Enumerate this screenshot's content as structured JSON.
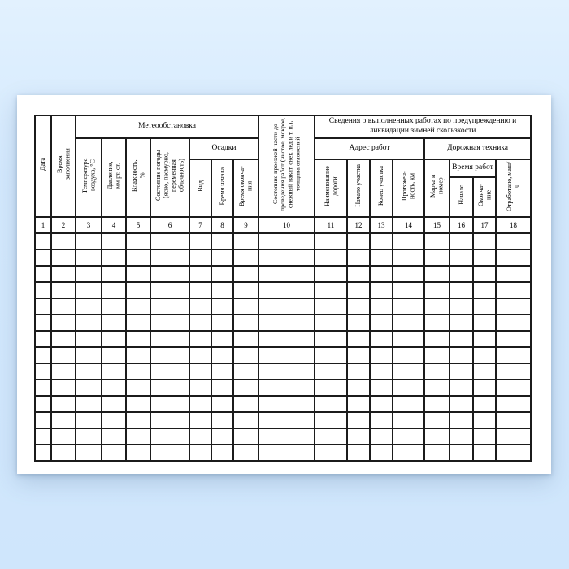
{
  "palette": {
    "background_top": "#e2f1fe",
    "background_bottom": "#cfe6fc",
    "paper": "#ffffff",
    "grid_line": "#1b1b1b",
    "text": "#000000"
  },
  "form": {
    "group_headers": {
      "meteo": "Метеообстановка",
      "precipitation": "Осадки",
      "works_info": "Сведения о выполненных работах по предупреждению и ликвидации зимней скользкости",
      "work_address": "Адрес работ",
      "road_machinery": "Дорожная техника",
      "work_time": "Время работ"
    },
    "column_headers": {
      "c1": "Дата",
      "c2": "Время заполнения",
      "c3": "Температура воздуха, °С",
      "c4": "Давление, мм рт. ст.",
      "c5": "Влажность, %",
      "c6": "Состояние погоды (ясно, пасмурно, переменная облачность)",
      "c7": "Вид",
      "c8": "Время начала",
      "c9": "Время оконча-ния",
      "c10": "Состояние проезжей части до проведения работ (чистое, мокрое, снежный накат, снег, лед и т. п.), толщина отложений",
      "c11": "Наименование дороги",
      "c12": "Начало участка",
      "c13": "Конец участка",
      "c14": "Протяжен-ность, км",
      "c15": "Марка и номер",
      "c16": "Начало",
      "c17": "Оконча-ние",
      "c18": "Отработано, маш/ч"
    },
    "column_numbers": [
      "1",
      "2",
      "3",
      "4",
      "5",
      "6",
      "7",
      "8",
      "9",
      "10",
      "11",
      "12",
      "13",
      "14",
      "15",
      "16",
      "17",
      "18"
    ],
    "data_row_count": 14
  }
}
